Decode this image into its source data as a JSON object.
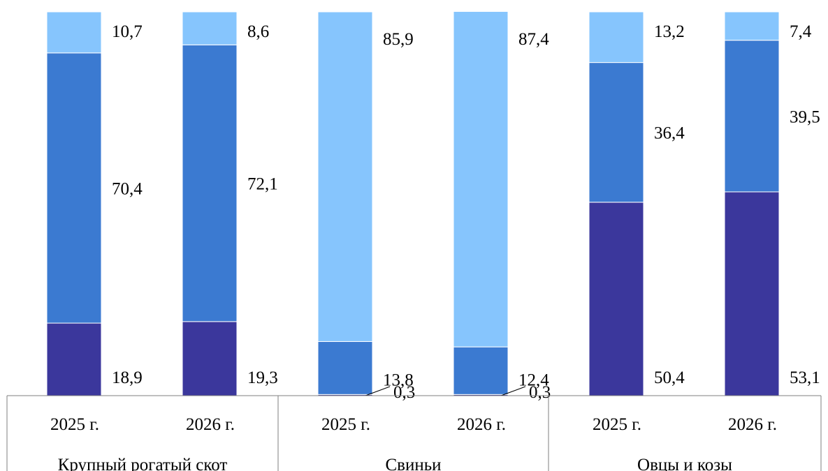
{
  "chart_data": {
    "type": "bar",
    "stacked": true,
    "percent": true,
    "ylim": [
      0,
      100
    ],
    "grid": false,
    "groups": [
      {
        "label": "Крупный рогатый скот",
        "bars": [
          {
            "x": "2025 г.",
            "segments": [
              {
                "value": 18.9,
                "label": "18,9"
              },
              {
                "value": 70.4,
                "label": "70,4"
              },
              {
                "value": 10.7,
                "label": "10,7"
              }
            ]
          },
          {
            "x": "2026 г.",
            "segments": [
              {
                "value": 19.3,
                "label": "19,3"
              },
              {
                "value": 72.1,
                "label": "72,1"
              },
              {
                "value": 8.6,
                "label": "8,6"
              }
            ]
          }
        ]
      },
      {
        "label": "Свиньи",
        "bars": [
          {
            "x": "2025 г.",
            "segments": [
              {
                "value": 0.3,
                "label": "0,3"
              },
              {
                "value": 13.8,
                "label": "13,8"
              },
              {
                "value": 85.9,
                "label": "85,9"
              }
            ]
          },
          {
            "x": "2026 г.",
            "segments": [
              {
                "value": 0.3,
                "label": "0,3"
              },
              {
                "value": 12.4,
                "label": "12,4"
              },
              {
                "value": 87.4,
                "label": "87,4"
              }
            ]
          }
        ]
      },
      {
        "label": "Овцы и козы",
        "bars": [
          {
            "x": "2025 г.",
            "segments": [
              {
                "value": 50.4,
                "label": "50,4"
              },
              {
                "value": 36.4,
                "label": "36,4"
              },
              {
                "value": 13.2,
                "label": "13,2"
              }
            ]
          },
          {
            "x": "2026 г.",
            "segments": [
              {
                "value": 53.1,
                "label": "53,1"
              },
              {
                "value": 39.5,
                "label": "39,5"
              },
              {
                "value": 7.4,
                "label": "7,4"
              }
            ]
          }
        ]
      }
    ],
    "series_colors": [
      "#3b379c",
      "#3b7ad1",
      "#86c5fd"
    ]
  }
}
